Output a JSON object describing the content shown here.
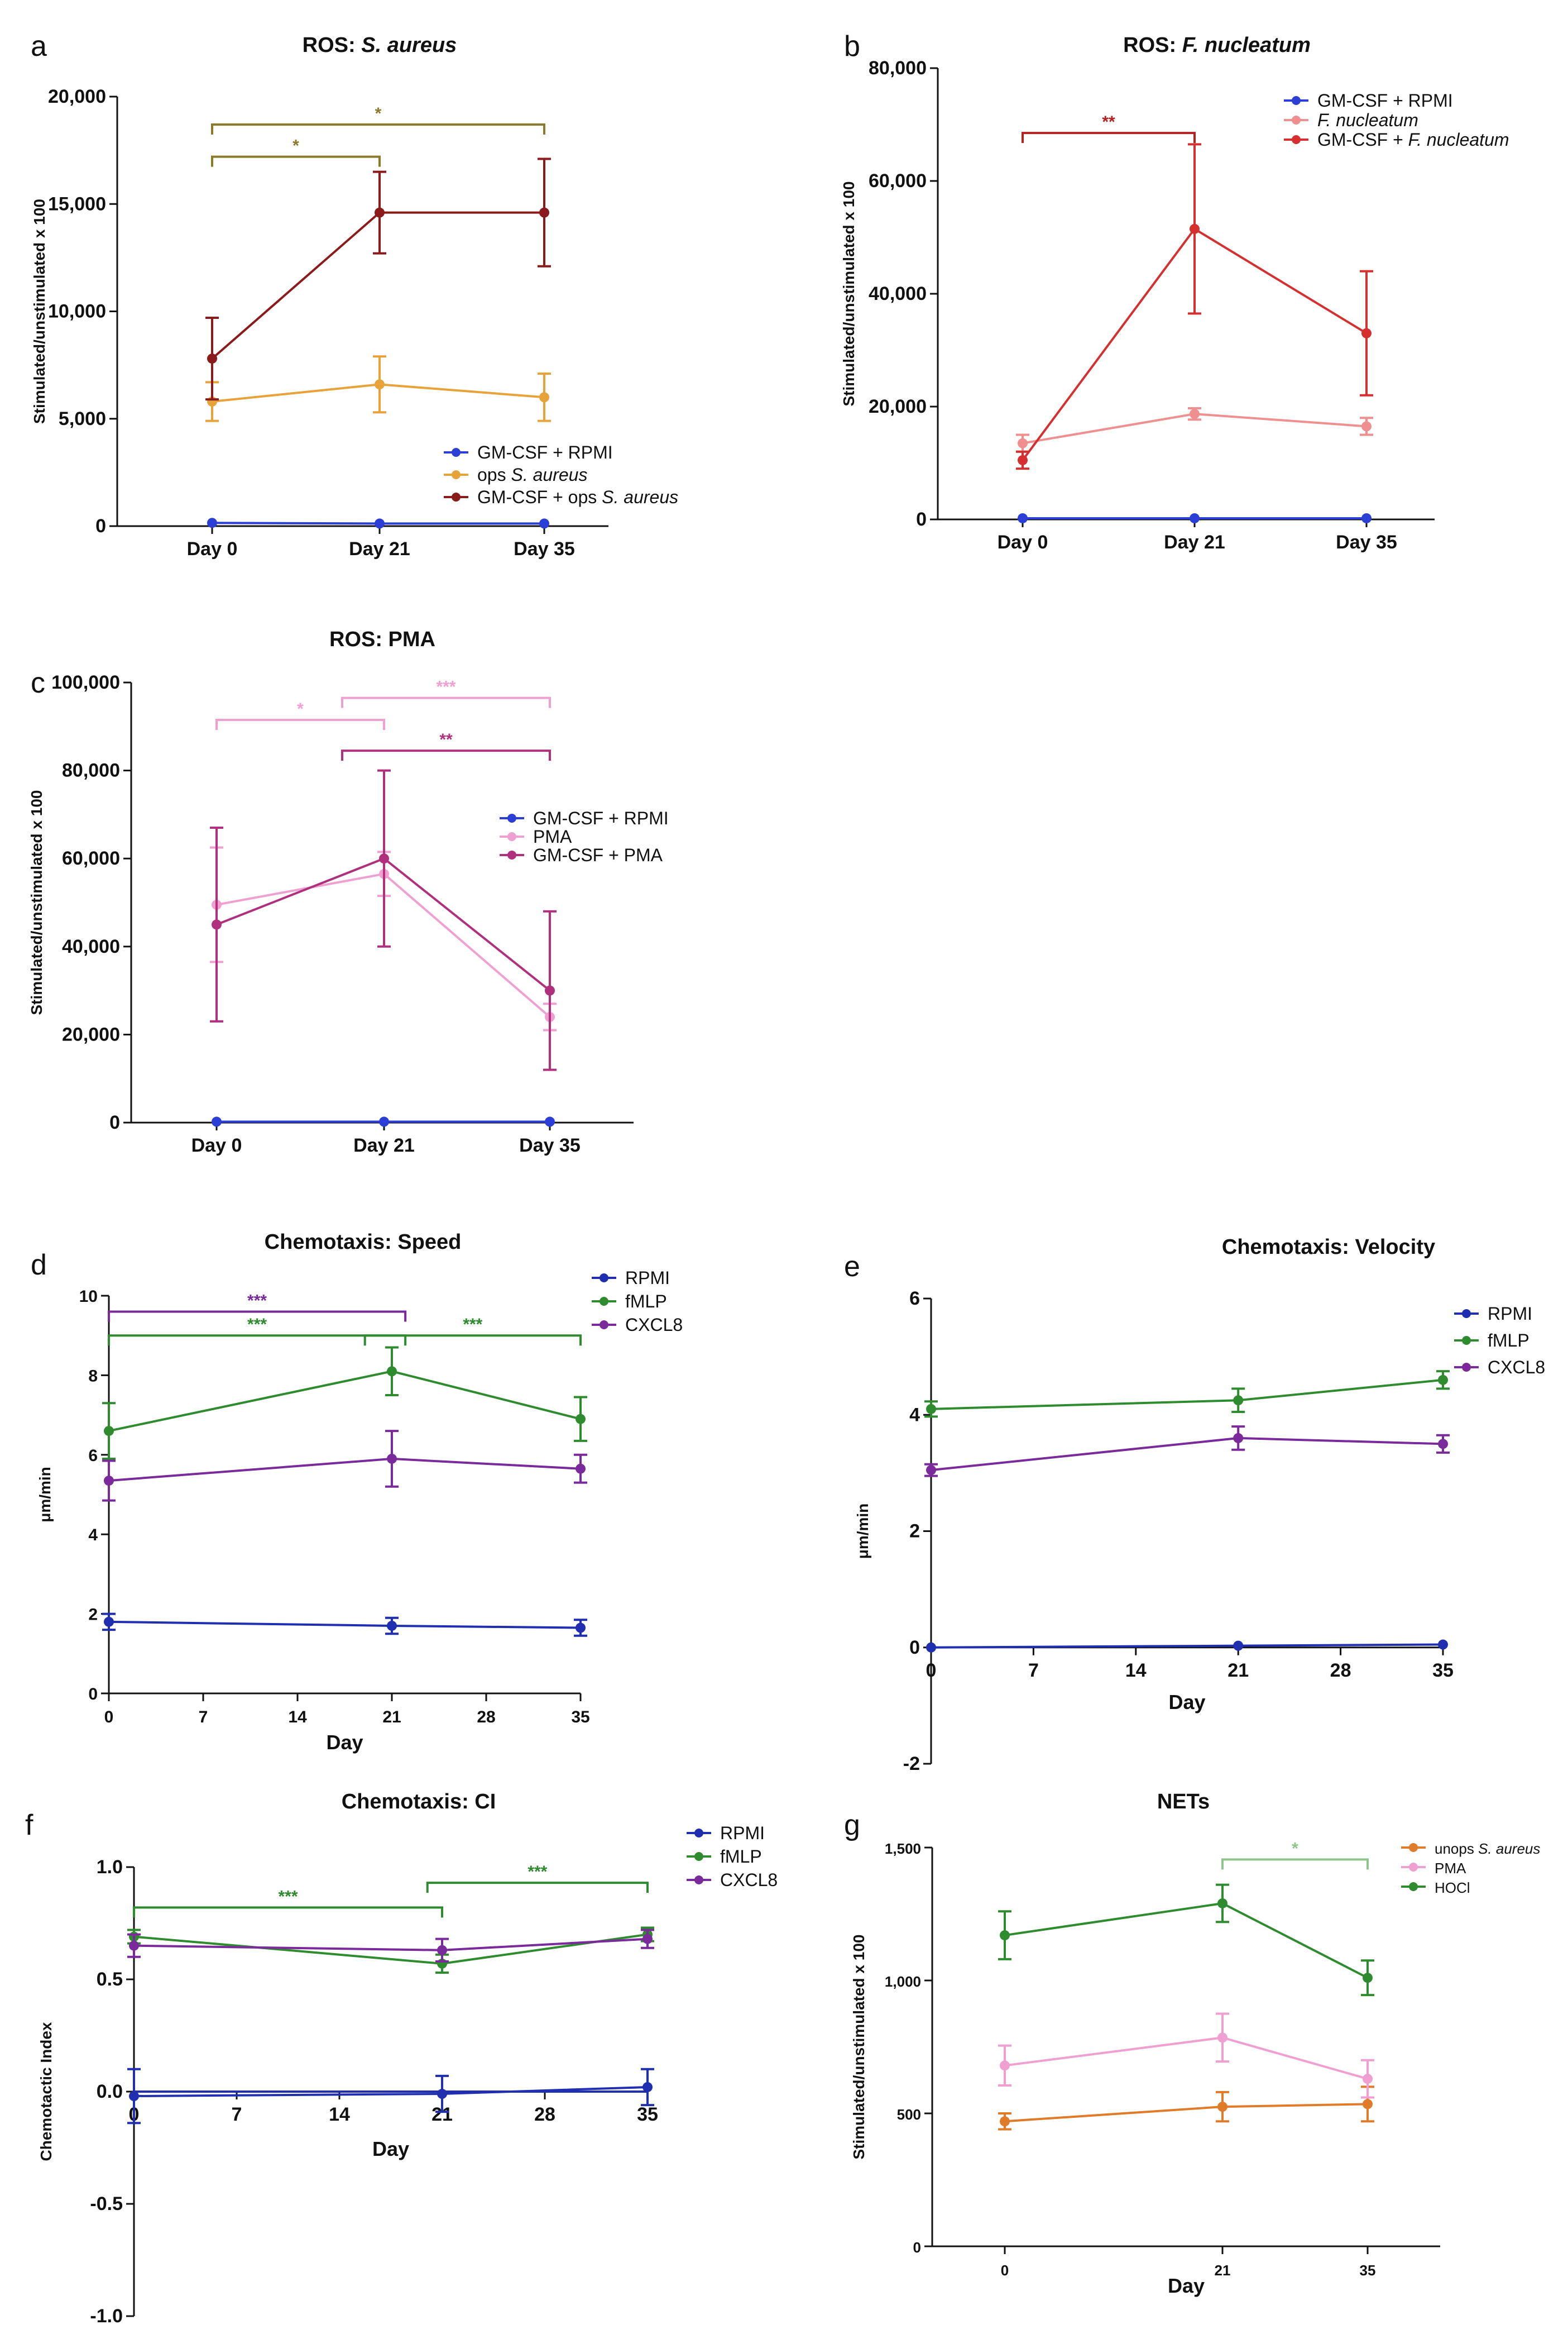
{
  "chart_data": [
    {
      "id": "a",
      "letter": "a",
      "type": "line",
      "title": "ROS: ",
      "title_italic": "S. aureus",
      "xlabel": "",
      "ylabel": "Stimulated/unstimulated x 100",
      "categories": [
        "Day 0",
        "Day 21",
        "Day 35"
      ],
      "ylim": [
        0,
        20000
      ],
      "yticks": [
        0,
        5000,
        10000,
        15000,
        20000
      ],
      "ytick_labels": [
        "0",
        "5,000",
        "10,000",
        "15,000",
        "20,000"
      ],
      "series": [
        {
          "name": "GM-CSF + RPMI",
          "name_parts": [
            [
              "GM-CSF + RPMI",
              false
            ]
          ],
          "color": "#2b3fd6",
          "values": [
            150,
            120,
            120
          ],
          "err": [
            0,
            0,
            0
          ]
        },
        {
          "name": "ops S. aureus",
          "name_parts": [
            [
              "ops ",
              false
            ],
            [
              "S. aureus",
              true
            ]
          ],
          "color": "#e8a23a",
          "values": [
            5800,
            6600,
            6000
          ],
          "err": [
            900,
            1300,
            1100
          ]
        },
        {
          "name": "GM-CSF + ops S. aureus",
          "name_parts": [
            [
              "GM-CSF + ops ",
              false
            ],
            [
              "S. aureus",
              true
            ]
          ],
          "color": "#8b1a1a",
          "values": [
            7800,
            14600,
            14600
          ],
          "err": [
            1900,
            1900,
            2500
          ]
        }
      ],
      "brackets": [
        {
          "from": 0,
          "to": 2,
          "y": 18700,
          "label": "*",
          "color": "#8a7a2a"
        },
        {
          "from": 0,
          "to": 1,
          "y": 17200,
          "label": "*",
          "color": "#8a7a2a"
        }
      ]
    },
    {
      "id": "b",
      "letter": "b",
      "type": "line",
      "title": "ROS: ",
      "title_italic": "F. nucleatum",
      "xlabel": "",
      "ylabel": "Stimulated/unstimulated x 100",
      "categories": [
        "Day 0",
        "Day 21",
        "Day 35"
      ],
      "ylim": [
        0,
        80000
      ],
      "yticks": [
        0,
        20000,
        40000,
        60000,
        80000
      ],
      "ytick_labels": [
        "0",
        "20,000",
        "40,000",
        "60,000",
        "80,000"
      ],
      "series": [
        {
          "name": "GM-CSF + RPMI",
          "name_parts": [
            [
              "GM-CSF + RPMI",
              false
            ]
          ],
          "color": "#2b3fd6",
          "values": [
            200,
            200,
            200
          ],
          "err": [
            0,
            0,
            0
          ]
        },
        {
          "name": "F. nucleatum",
          "name_parts": [
            [
              "F. nucleatum",
              true
            ]
          ],
          "color": "#ef8f8f",
          "values": [
            13500,
            18700,
            16500
          ],
          "err": [
            1500,
            1000,
            1500
          ]
        },
        {
          "name": "GM-CSF + F. nucleatum",
          "name_parts": [
            [
              "GM-CSF + ",
              false
            ],
            [
              "F. nucleatum",
              true
            ]
          ],
          "color": "#d62f2f",
          "values": [
            10500,
            51500,
            33000
          ],
          "err": [
            1500,
            15000,
            11000
          ]
        }
      ],
      "brackets": [
        {
          "from": 0,
          "to": 1,
          "y": 68500,
          "label": "**",
          "color": "#b22222"
        }
      ]
    },
    {
      "id": "c",
      "letter": "c",
      "type": "line",
      "title": "ROS: PMA",
      "title_italic": "",
      "xlabel": "",
      "ylabel": "Stimulated/unstimulated x 100",
      "categories": [
        "Day 0",
        "Day 21",
        "Day 35"
      ],
      "ylim": [
        0,
        100000
      ],
      "yticks": [
        0,
        20000,
        40000,
        60000,
        80000,
        100000
      ],
      "ytick_labels": [
        "0",
        "20,000",
        "40,000",
        "60,000",
        "80,000",
        "100,000"
      ],
      "series": [
        {
          "name": "GM-CSF + RPMI",
          "name_parts": [
            [
              "GM-CSF + RPMI",
              false
            ]
          ],
          "color": "#2b3fd6",
          "values": [
            200,
            200,
            200
          ],
          "err": [
            0,
            0,
            0
          ]
        },
        {
          "name": "PMA",
          "name_parts": [
            [
              "PMA",
              false
            ]
          ],
          "color": "#f0a0d0",
          "values": [
            49500,
            56500,
            24000
          ],
          "err": [
            13000,
            5000,
            3000
          ]
        },
        {
          "name": "GM-CSF + PMA",
          "name_parts": [
            [
              "GM-CSF + PMA",
              false
            ]
          ],
          "color": "#b0307e",
          "values": [
            45000,
            60000,
            30000
          ],
          "err": [
            22000,
            20000,
            18000
          ]
        }
      ],
      "brackets": [
        {
          "from": 0,
          "to": 1,
          "y": 91500,
          "label": "*",
          "color": "#f0a0d0"
        },
        {
          "from": 0.75,
          "to": 2,
          "y": 96500,
          "label": "***",
          "color": "#f0a0d0"
        },
        {
          "from": 0.75,
          "to": 2,
          "y": 84500,
          "label": "**",
          "color": "#b0307e"
        }
      ]
    },
    {
      "id": "d",
      "letter": "d",
      "type": "line",
      "title": "Chemotaxis: Speed",
      "title_italic": "",
      "xlabel": "Day",
      "ylabel": "μm/min",
      "xlim": [
        0,
        35
      ],
      "xticks": [
        0,
        7,
        14,
        21,
        28,
        35
      ],
      "x": [
        0,
        21,
        35
      ],
      "ylim": [
        0,
        10
      ],
      "yticks": [
        0,
        2,
        4,
        6,
        8,
        10
      ],
      "ytick_labels": [
        "0",
        "2",
        "4",
        "6",
        "8",
        "10"
      ],
      "series": [
        {
          "name": "RPMI",
          "name_parts": [
            [
              "RPMI",
              false
            ]
          ],
          "color": "#1f2fb0",
          "values": [
            1.8,
            1.7,
            1.65
          ],
          "err": [
            0.2,
            0.2,
            0.2
          ]
        },
        {
          "name": "fMLP",
          "name_parts": [
            [
              "fMLP",
              false
            ]
          ],
          "color": "#2e8b2e",
          "values": [
            6.6,
            8.1,
            6.9
          ],
          "err": [
            0.7,
            0.6,
            0.55
          ]
        },
        {
          "name": "CXCL8",
          "name_parts": [
            [
              "CXCL8",
              false
            ]
          ],
          "color": "#7a2a9a",
          "values": [
            5.35,
            5.9,
            5.65
          ],
          "err": [
            0.5,
            0.7,
            0.35
          ]
        }
      ],
      "brackets": [
        {
          "from": 0,
          "to": 22,
          "y": 9.6,
          "label": "***",
          "color": "#7a2a9a"
        },
        {
          "from": 0,
          "to": 22,
          "y": 9.0,
          "label": "***",
          "color": "#2e8b2e"
        },
        {
          "from": 19,
          "to": 35,
          "y": 9.0,
          "label": "***",
          "color": "#2e8b2e"
        }
      ]
    },
    {
      "id": "e",
      "letter": "e",
      "type": "line",
      "title": "Chemotaxis: Velocity",
      "title_italic": "",
      "xlabel": "Day",
      "ylabel": "μm/min",
      "xlim": [
        0,
        35
      ],
      "xticks": [
        0,
        7,
        14,
        21,
        28,
        35
      ],
      "x": [
        0,
        21,
        35
      ],
      "ylim": [
        -2,
        6
      ],
      "yticks": [
        -2,
        0,
        2,
        4,
        6
      ],
      "ytick_labels": [
        "-2",
        "0",
        "2",
        "4",
        "6"
      ],
      "series": [
        {
          "name": "RPMI",
          "name_parts": [
            [
              "RPMI",
              false
            ]
          ],
          "color": "#1f2fb0",
          "values": [
            0.0,
            0.03,
            0.05
          ],
          "err": [
            0,
            0,
            0
          ]
        },
        {
          "name": "fMLP",
          "name_parts": [
            [
              "fMLP",
              false
            ]
          ],
          "color": "#2e8b2e",
          "values": [
            4.1,
            4.25,
            4.6
          ],
          "err": [
            0.13,
            0.2,
            0.15
          ]
        },
        {
          "name": "CXCL8",
          "name_parts": [
            [
              "CXCL8",
              false
            ]
          ],
          "color": "#7a2a9a",
          "values": [
            3.05,
            3.6,
            3.5
          ],
          "err": [
            0.1,
            0.2,
            0.15
          ]
        }
      ],
      "brackets": []
    },
    {
      "id": "f",
      "letter": "f",
      "type": "line",
      "title": "Chemotaxis: CI",
      "title_italic": "",
      "xlabel": "Day",
      "ylabel": "Chemotactic Index",
      "xlim": [
        0,
        35
      ],
      "xticks": [
        0,
        7,
        14,
        21,
        28,
        35
      ],
      "x": [
        0,
        21,
        35
      ],
      "ylim": [
        -1.0,
        1.0
      ],
      "yticks": [
        -1.0,
        -0.5,
        0.0,
        0.5,
        1.0
      ],
      "ytick_labels": [
        "-1.0",
        "-0.5",
        "0.0",
        "0.5",
        "1.0"
      ],
      "series": [
        {
          "name": "RPMI",
          "name_parts": [
            [
              "RPMI",
              false
            ]
          ],
          "color": "#1f2fb0",
          "values": [
            -0.02,
            -0.01,
            0.02
          ],
          "err": [
            0.12,
            0.08,
            0.08
          ]
        },
        {
          "name": "fMLP",
          "name_parts": [
            [
              "fMLP",
              false
            ]
          ],
          "color": "#2e8b2e",
          "values": [
            0.69,
            0.57,
            0.7
          ],
          "err": [
            0.03,
            0.04,
            0.03
          ]
        },
        {
          "name": "CXCL8",
          "name_parts": [
            [
              "CXCL8",
              false
            ]
          ],
          "color": "#7a2a9a",
          "values": [
            0.65,
            0.63,
            0.68
          ],
          "err": [
            0.05,
            0.05,
            0.04
          ]
        }
      ],
      "extra_line": {
        "values": [
          0.0,
          0.0,
          0.0
        ],
        "color": "#1f2fb0"
      },
      "brackets": [
        {
          "from": 0,
          "to": 21,
          "y": 0.82,
          "label": "***",
          "color": "#2e8b2e"
        },
        {
          "from": 20,
          "to": 35,
          "y": 0.93,
          "label": "***",
          "color": "#2e8b2e"
        }
      ]
    },
    {
      "id": "g",
      "letter": "g",
      "type": "line",
      "title": "NETs",
      "title_italic": "",
      "xlabel": "Day",
      "ylabel": "Stimulated/unstimulated x 100",
      "xlim": [
        -7,
        42
      ],
      "xticks": [
        0,
        21,
        35
      ],
      "x": [
        0,
        21,
        35
      ],
      "ylim": [
        0,
        1500
      ],
      "yticks": [
        0,
        500,
        1000,
        1500
      ],
      "ytick_labels": [
        "0",
        "500",
        "1,000",
        "1,500"
      ],
      "series": [
        {
          "name": "unops S. aureus",
          "name_parts": [
            [
              "unops ",
              false
            ],
            [
              "S. aureus",
              true
            ]
          ],
          "color": "#e07b2a",
          "values": [
            470,
            525,
            535
          ],
          "err": [
            30,
            55,
            65
          ]
        },
        {
          "name": "PMA",
          "name_parts": [
            [
              "PMA",
              false
            ]
          ],
          "color": "#f0a0d0",
          "values": [
            680,
            785,
            630
          ],
          "err": [
            75,
            90,
            70
          ]
        },
        {
          "name": "HOCl",
          "name_parts": [
            [
              "HOCl",
              false
            ]
          ],
          "color": "#2e8b2e",
          "values": [
            1170,
            1290,
            1010
          ],
          "err": [
            90,
            70,
            65
          ]
        }
      ],
      "brackets": [
        {
          "from": 21,
          "to": 35,
          "y": 1455,
          "label": "*",
          "color": "#8fc48f"
        }
      ]
    }
  ]
}
